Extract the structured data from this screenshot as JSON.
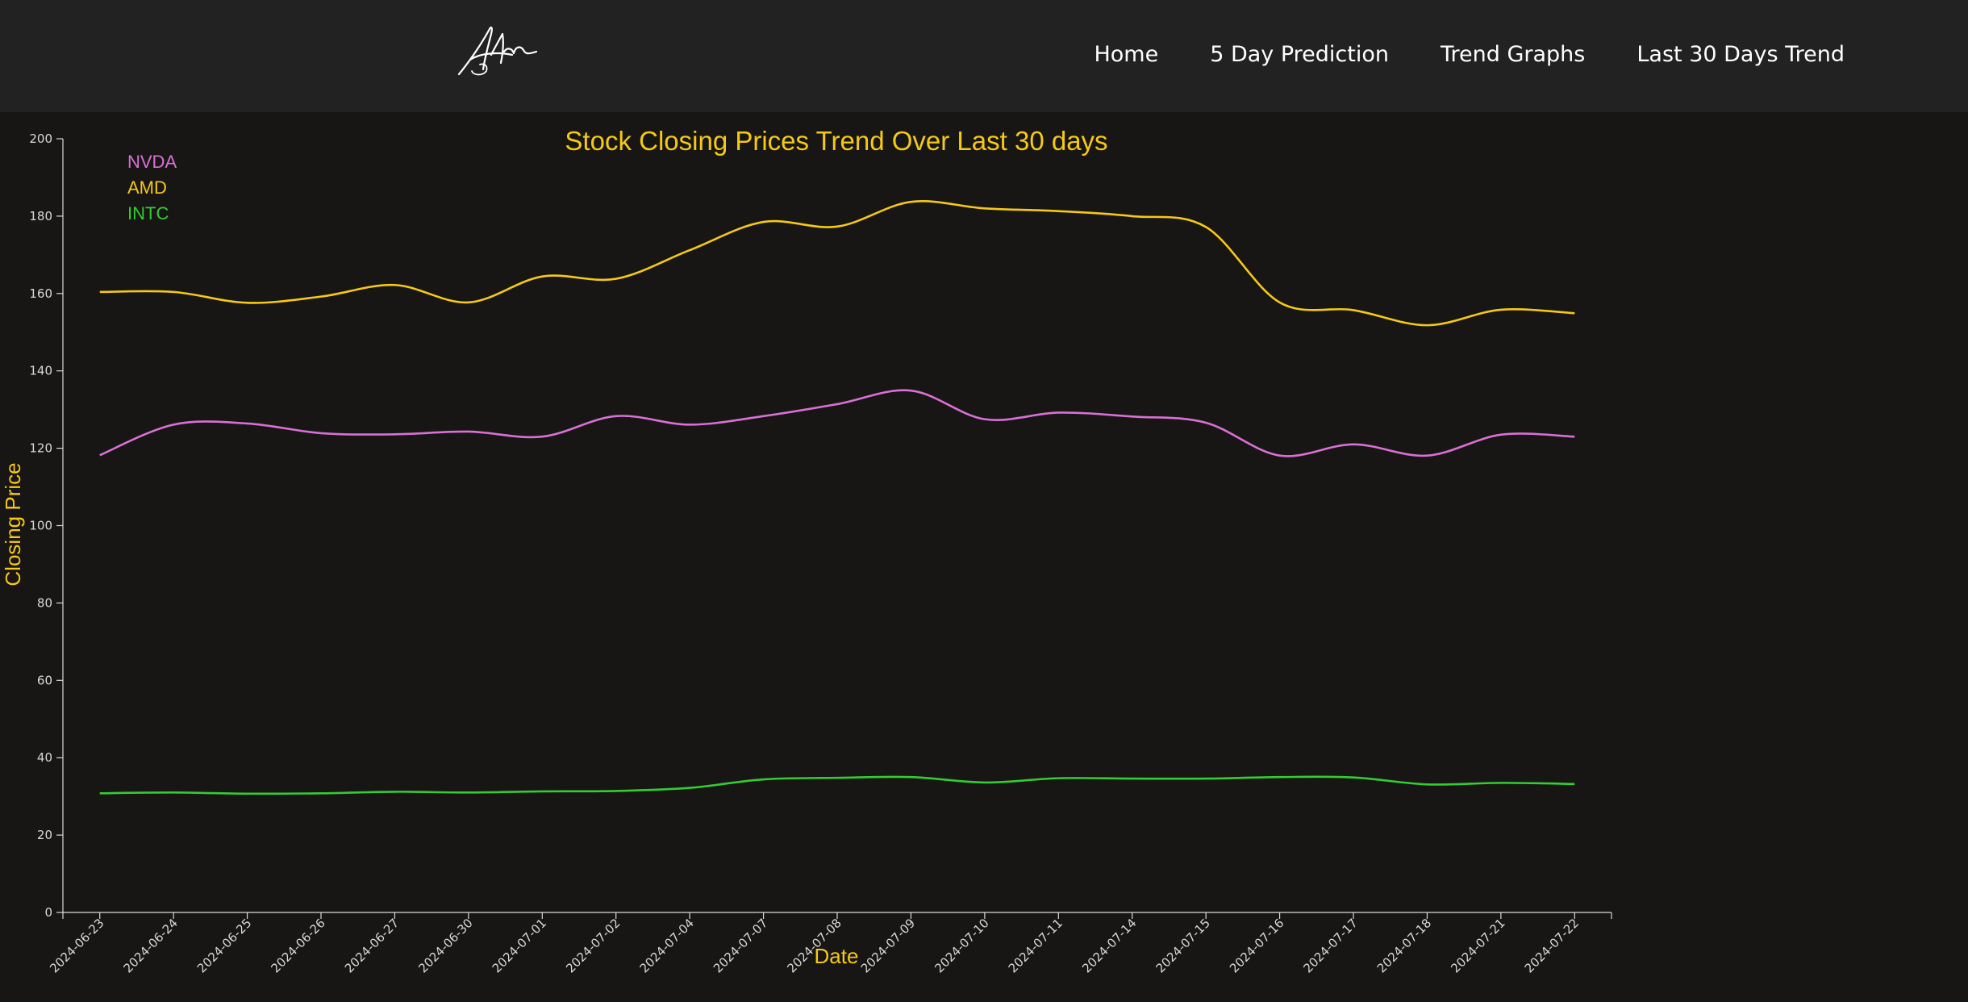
{
  "nav": {
    "links": [
      "Home",
      "5 Day Prediction",
      "Trend Graphs",
      "Last 30 Days Trend"
    ]
  },
  "colors": {
    "background": "#171615",
    "navbar": "#222222",
    "title": "#f6c915",
    "axis": "#d9d9d9"
  },
  "chart_data": {
    "type": "line",
    "title": "Stock Closing Prices Trend Over Last 30 days",
    "xlabel": "Date",
    "ylabel": "Closing Price",
    "ylim": [
      0,
      200
    ],
    "yticks": [
      0,
      20,
      40,
      60,
      80,
      100,
      120,
      140,
      160,
      180,
      200
    ],
    "x": [
      "2024-06-23",
      "2024-06-24",
      "2024-06-25",
      "2024-06-26",
      "2024-06-27",
      "2024-06-30",
      "2024-07-01",
      "2024-07-02",
      "2024-07-04",
      "2024-07-07",
      "2024-07-08",
      "2024-07-09",
      "2024-07-10",
      "2024-07-11",
      "2024-07-14",
      "2024-07-15",
      "2024-07-16",
      "2024-07-17",
      "2024-07-18",
      "2024-07-21",
      "2024-07-22"
    ],
    "legend_position": "top-left",
    "grid": false,
    "series": [
      {
        "name": "NVDA",
        "color": "#da70d6",
        "values": [
          118.2,
          126.1,
          126.4,
          123.9,
          123.6,
          124.3,
          123.0,
          128.3,
          126.1,
          128.3,
          131.4,
          134.9,
          127.5,
          129.2,
          128.2,
          126.6,
          118.1,
          121.0,
          118.1,
          123.5,
          123.0
        ]
      },
      {
        "name": "AMD",
        "color": "#f6c915",
        "values": [
          160.4,
          160.4,
          157.6,
          159.2,
          162.2,
          157.7,
          164.4,
          163.8,
          171.2,
          178.5,
          177.3,
          183.7,
          182.0,
          181.3,
          180.0,
          177.2,
          157.7,
          155.7,
          151.8,
          155.8,
          154.9
        ]
      },
      {
        "name": "INTC",
        "color": "#32cd32",
        "values": [
          30.8,
          31.0,
          30.7,
          30.8,
          31.2,
          31.0,
          31.3,
          31.4,
          32.2,
          34.4,
          34.8,
          35.0,
          33.6,
          34.7,
          34.6,
          34.6,
          35.0,
          34.9,
          33.1,
          33.5,
          33.2
        ]
      }
    ]
  }
}
